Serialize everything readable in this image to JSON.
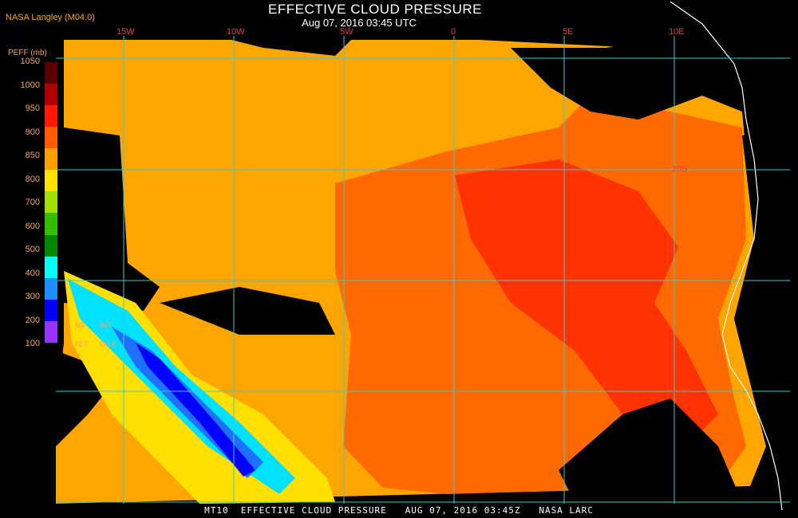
{
  "title": "EFFECTIVE CLOUD PRESSURE",
  "subtitle": "Aug 07, 2016 03:45 UTC",
  "provider": "NASA Langley (M04.0)",
  "footer": "MT10  EFFECTIVE CLOUD PRESSURE   AUG 07, 2016 03:45Z   NASA LARC",
  "legend": {
    "title": "PEFF (mb)",
    "ticks": [
      "1050",
      "1000",
      "950",
      "900",
      "850",
      "800",
      "700",
      "600",
      "500",
      "400",
      "300",
      "200",
      "100"
    ],
    "colors": [
      "#5a0000",
      "#b00000",
      "#ff1a00",
      "#ff5a00",
      "#ffa000",
      "#ffe000",
      "#a0e000",
      "#30c000",
      "#008800",
      "#00ffff",
      "#1e90ff",
      "#0000ff",
      "#9933ff"
    ],
    "no_ret": {
      "line1": "NO",
      "line2": "RET"
    },
    "out_val": {
      "line1": "OUT",
      "line2": "VALR"
    }
  },
  "lon_labels": [
    "15W",
    "10W",
    "5W",
    "0",
    "5E",
    "10E"
  ],
  "lat_labels": [
    "10S",
    "20S"
  ],
  "colors": {
    "background": "#000000",
    "grid": "#40c8c8",
    "coast": "#ffffff",
    "low_cloud_orange": "#ffa500",
    "mid_red_orange": "#ff5a00",
    "deep_red": "#ff2200",
    "high_blue": "#1e90ff"
  }
}
